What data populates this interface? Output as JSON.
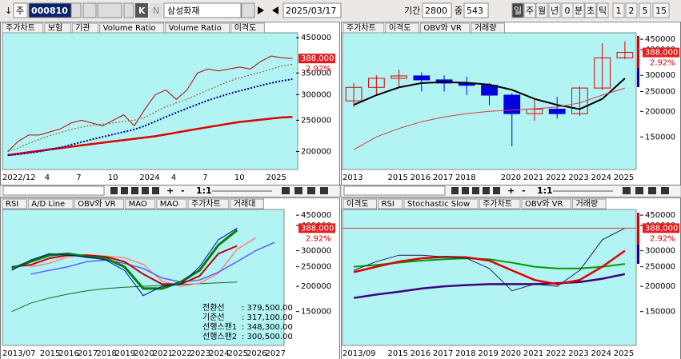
{
  "toolbar": {
    "arrow": "↓",
    "mode": "주",
    "code": "000810",
    "buttons": [
      "K",
      "N"
    ],
    "name": "삼성화재",
    "date": "2025/03/17",
    "period_label": "기간",
    "period": "2800",
    "mid_label": "중",
    "mid": "543",
    "intervals": [
      "일",
      "주",
      "월",
      "년",
      "0",
      "분",
      "초",
      "틱",
      "1",
      "2",
      "5",
      "15"
    ]
  },
  "scroll_bars": [
    {
      "buttons": [
        "+",
        "-",
        "1:1"
      ]
    },
    {
      "buttons": [
        "+",
        "-",
        "1:1"
      ]
    }
  ],
  "chart_data": [
    {
      "type": "line",
      "tabs": [
        "주가차트",
        "보험",
        "기관",
        "Volume Ratio",
        "Volume Ratio",
        "이격도"
      ],
      "log_scale": true,
      "ylim": [
        176000,
        466000
      ],
      "yticks": [
        450000,
        350000,
        300000,
        250000,
        200000
      ],
      "current": {
        "value": 388000,
        "label": "388,000"
      },
      "change": "2.92%",
      "categories": [
        "2022/12",
        null,
        null,
        null,
        "4",
        null,
        null,
        "7",
        null,
        null,
        "10",
        null,
        null,
        "2024",
        null,
        null,
        "4",
        null,
        null,
        "7",
        null,
        null,
        "10",
        null,
        null,
        "2025",
        null,
        null
      ],
      "series": [
        {
          "color": "#c00000",
          "width": 1,
          "values": [
            200000,
            215000,
            225000,
            225000,
            230000,
            235000,
            245000,
            250000,
            245000,
            240000,
            250000,
            260000,
            240000,
            270000,
            300000,
            310000,
            290000,
            310000,
            350000,
            360000,
            355000,
            360000,
            365000,
            360000,
            380000,
            395000,
            390000,
            388000
          ]
        },
        {
          "color": "#e00000",
          "width": 2.5,
          "values": [
            195000,
            197000,
            199000,
            201000,
            203000,
            205000,
            207000,
            209000,
            211000,
            213000,
            215000,
            217000,
            219000,
            221000,
            223000,
            226000,
            229000,
            232000,
            235000,
            238000,
            241000,
            244000,
            247000,
            249000,
            251000,
            253000,
            255000,
            256000
          ]
        },
        {
          "color": "#0000a0",
          "width": 2,
          "style": "dotted",
          "values": [
            195000,
            196000,
            198000,
            200000,
            203000,
            206000,
            210000,
            214000,
            218000,
            222000,
            226000,
            230000,
            234000,
            240000,
            248000,
            256000,
            264000,
            272000,
            280000,
            288000,
            295000,
            302000,
            308000,
            314000,
            320000,
            326000,
            331000,
            335000
          ]
        },
        {
          "color": "#a05020",
          "width": 1,
          "style": "dotted",
          "values": [
            200000,
            205000,
            212000,
            218000,
            224000,
            229000,
            234000,
            238000,
            241000,
            243000,
            245000,
            248000,
            250000,
            255000,
            265000,
            275000,
            283000,
            290000,
            300000,
            310000,
            320000,
            330000,
            338000,
            345000,
            352000,
            360000,
            368000,
            372000
          ]
        }
      ]
    },
    {
      "type": "candlestick",
      "tabs": [
        "주가차트",
        "이격도",
        "OBV와 VR",
        "거래량"
      ],
      "log_scale": true,
      "ylim": [
        104000,
        484000
      ],
      "yticks": [
        450000,
        400000,
        300000,
        250000,
        200000,
        150000
      ],
      "current": {
        "value": 388000,
        "label": "388,000"
      },
      "change": "2.92%",
      "categories": [
        "2013",
        null,
        "2015",
        "2016",
        "2017",
        "2018",
        null,
        "2020",
        "2021",
        "2022",
        "2023",
        "2024",
        "2025"
      ],
      "candles": {
        "open": [
          225000,
          262000,
          290000,
          298000,
          285000,
          275000,
          268000,
          240000,
          195000,
          205000,
          195000,
          260000,
          365000
        ],
        "high": [
          275000,
          300000,
          320000,
          310000,
          300000,
          295000,
          275000,
          245000,
          230000,
          235000,
          265000,
          430000,
          440000
        ],
        "low": [
          210000,
          240000,
          260000,
          250000,
          250000,
          240000,
          215000,
          135000,
          180000,
          185000,
          190000,
          255000,
          360000
        ],
        "close": [
          262000,
          290000,
          298000,
          285000,
          275000,
          268000,
          240000,
          195000,
          205000,
          195000,
          260000,
          365000,
          388000
        ]
      },
      "series": [
        {
          "color": "#000000",
          "width": 2,
          "values": [
            215000,
            240000,
            262000,
            275000,
            278000,
            276000,
            270000,
            255000,
            230000,
            215000,
            205000,
            230000,
            290000
          ]
        },
        {
          "color": "#d04040",
          "width": 1,
          "values": [
            130000,
            150000,
            165000,
            178000,
            188000,
            195000,
            200000,
            203000,
            206000,
            210000,
            220000,
            240000,
            260000
          ]
        }
      ]
    },
    {
      "type": "line",
      "tabs": [
        "RSI",
        "A/D Line",
        "OBV와 VR",
        "MAO",
        "MAO",
        "주가차트",
        "거래대"
      ],
      "log_scale": true,
      "ylim": [
        102000,
        480000
      ],
      "yticks": [
        450000,
        400000,
        300000,
        250000,
        200000,
        150000
      ],
      "current": {
        "value": 388000,
        "label": "388,000"
      },
      "change": "2.92%",
      "categories": [
        "2013/07",
        null,
        "2015",
        "2016",
        "2017",
        "2018",
        "2019",
        "2020",
        "2021",
        "2022",
        "2023",
        "2024",
        "2025",
        "2026",
        "2027"
      ],
      "series": [
        {
          "color": "#1a6b1a",
          "width": 1,
          "values": [
            150000,
            165000,
            175000,
            183000,
            190000,
            195000,
            198000,
            200000,
            202000,
            204000,
            206000,
            208000,
            210000,
            null,
            null
          ]
        },
        {
          "color": "#ff8080",
          "width": 1.5,
          "values": [
            null,
            250000,
            260000,
            280000,
            287000,
            282000,
            277000,
            257000,
            212000,
            200000,
            207000,
            232000,
            305000,
            348300,
            null
          ]
        },
        {
          "color": "#6060ff",
          "width": 1.5,
          "values": [
            null,
            230000,
            240000,
            250000,
            265000,
            270000,
            260000,
            245000,
            220000,
            210000,
            215000,
            235000,
            265000,
            300500,
            330000
          ]
        },
        {
          "color": "#c00000",
          "width": 2,
          "values": [
            250000,
            255000,
            275000,
            285000,
            285000,
            280000,
            265000,
            230000,
            205000,
            205000,
            225000,
            290000,
            317100,
            null,
            null
          ]
        },
        {
          "color": "#008000",
          "width": 3,
          "values": [
            245000,
            265000,
            285000,
            290000,
            280000,
            275000,
            250000,
            195000,
            195000,
            210000,
            240000,
            320000,
            379500,
            null,
            null
          ]
        },
        {
          "color": "#0000c0",
          "width": 1,
          "values": [
            240000,
            270000,
            290000,
            285000,
            280000,
            270000,
            240000,
            180000,
            200000,
            205000,
            250000,
            340000,
            388000,
            null,
            null
          ]
        }
      ],
      "annotations": [
        {
          "label": "전환선",
          "value": ": 379,500.00"
        },
        {
          "label": "기준선",
          "value": ": 317,100.00"
        },
        {
          "label": "선행스팬1",
          "value": ": 348,300.00"
        },
        {
          "label": "선행스팬2",
          "value": ": 300,500.00"
        }
      ]
    },
    {
      "type": "line",
      "tabs": [
        "이격도",
        "RSI",
        "Stochastic Slow",
        "주가차트",
        "OBV와 VR",
        "거래량"
      ],
      "log_scale": true,
      "ylim": [
        102000,
        480000
      ],
      "yticks": [
        450000,
        400000,
        300000,
        250000,
        200000,
        150000
      ],
      "current": {
        "value": 388000,
        "label": "388,000"
      },
      "change": "2.92%",
      "price_line": true,
      "categories": [
        "2013/09",
        null,
        "2015",
        "2016",
        "2017",
        "2018",
        "2019",
        "2020",
        "2021",
        "2022",
        "2023",
        "2024",
        "2025"
      ],
      "series": [
        {
          "color": "#00a000",
          "width": 2,
          "values": [
            250000,
            255000,
            262000,
            268000,
            272000,
            275000,
            272000,
            262000,
            250000,
            245000,
            245000,
            250000,
            258000
          ]
        },
        {
          "color": "#400080",
          "width": 2.5,
          "values": [
            175000,
            182000,
            188000,
            195000,
            200000,
            203000,
            205000,
            205000,
            205000,
            207000,
            210000,
            218000,
            230000
          ]
        },
        {
          "color": "#e00000",
          "width": 2.5,
          "values": [
            235000,
            250000,
            265000,
            275000,
            280000,
            278000,
            268000,
            240000,
            215000,
            205000,
            215000,
            250000,
            300000
          ]
        },
        {
          "color": "#202060",
          "width": 1,
          "values": [
            240000,
            265000,
            285000,
            285000,
            280000,
            275000,
            245000,
            190000,
            205000,
            200000,
            240000,
            340000,
            388000
          ]
        }
      ]
    }
  ]
}
